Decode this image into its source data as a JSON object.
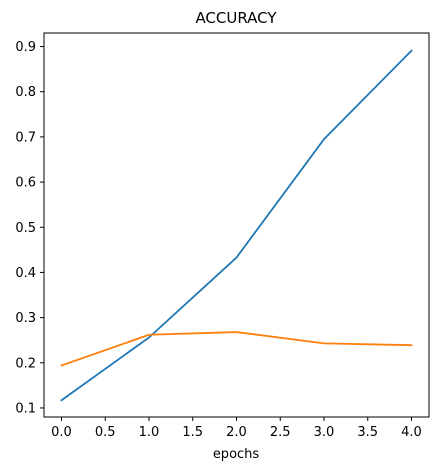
{
  "chart_data": {
    "type": "line",
    "title": "ACCURACY",
    "xlabel": "epochs",
    "ylabel": "",
    "x": [
      0,
      1,
      2,
      3,
      4
    ],
    "xlim": [
      -0.2,
      4.2
    ],
    "ylim": [
      0.08,
      0.93
    ],
    "xticks": [
      0,
      0.5,
      1,
      1.5,
      2,
      2.5,
      3,
      3.5,
      4
    ],
    "xtick_labels": [
      "0.0",
      "0.5",
      "1.0",
      "1.5",
      "2.0",
      "2.5",
      "3.0",
      "3.5",
      "4.0"
    ],
    "yticks": [
      0.1,
      0.2,
      0.3,
      0.4,
      0.5,
      0.6,
      0.7,
      0.8,
      0.9
    ],
    "ytick_labels": [
      "0.1",
      "0.2",
      "0.3",
      "0.4",
      "0.5",
      "0.6",
      "0.7",
      "0.8",
      "0.9"
    ],
    "grid": false,
    "legend": "none",
    "series": [
      {
        "color": "#1f77b4",
        "values": [
          0.117,
          0.256,
          0.433,
          0.695,
          0.891
        ]
      },
      {
        "color": "#ff7f0e",
        "values": [
          0.194,
          0.262,
          0.268,
          0.243,
          0.239
        ]
      }
    ]
  }
}
